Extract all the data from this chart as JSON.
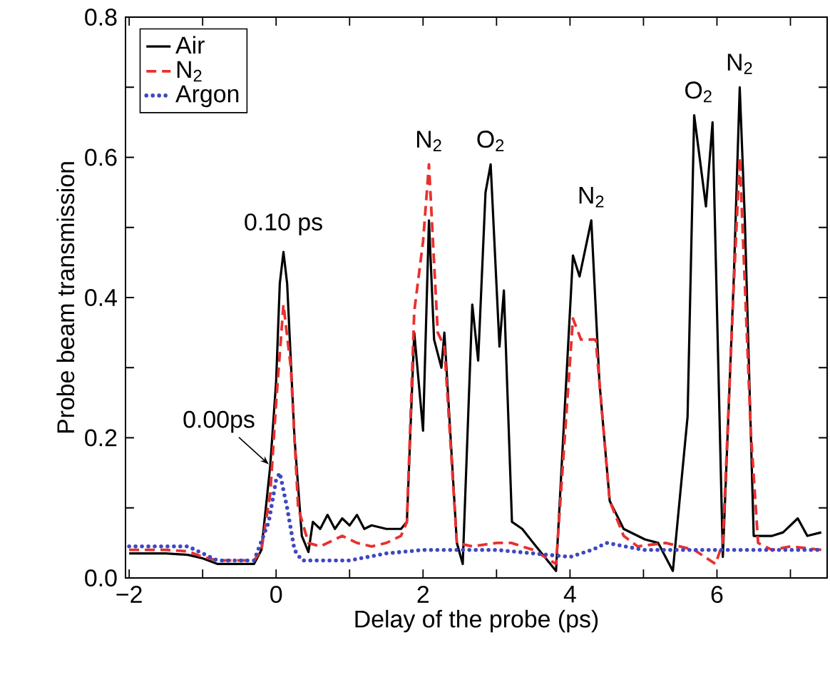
{
  "chart_data": {
    "type": "line",
    "xlabel": "Delay of the probe (ps)",
    "ylabel": "Probe beam transmission",
    "xlim": [
      -2.05,
      7.5
    ],
    "ylim": [
      0,
      0.8
    ],
    "xticks": [
      {
        "value": -2,
        "label": "−2"
      },
      {
        "value": -1,
        "label": null
      },
      {
        "value": 0,
        "label": "0"
      },
      {
        "value": 1,
        "label": null
      },
      {
        "value": 2,
        "label": "2"
      },
      {
        "value": 3,
        "label": null
      },
      {
        "value": 4,
        "label": "4"
      },
      {
        "value": 5,
        "label": null
      },
      {
        "value": 6,
        "label": "6"
      },
      {
        "value": 7,
        "label": null
      }
    ],
    "yticks": [
      {
        "value": 0,
        "label": "0.0"
      },
      {
        "value": 0.1,
        "label": null
      },
      {
        "value": 0.2,
        "label": "0.2"
      },
      {
        "value": 0.3,
        "label": null
      },
      {
        "value": 0.4,
        "label": "0.4"
      },
      {
        "value": 0.5,
        "label": null
      },
      {
        "value": 0.6,
        "label": "0.6"
      },
      {
        "value": 0.7,
        "label": null
      },
      {
        "value": 0.8,
        "label": "0.8"
      }
    ],
    "legend": "top left",
    "grid": false,
    "marker": "none",
    "series": [
      {
        "name": "Air",
        "color": "#000000",
        "line_style": "solid",
        "x": [
          -2,
          -1.5,
          -1.2,
          -1,
          -0.8,
          -0.5,
          -0.3,
          -0.2,
          -0.08,
          0,
          0.05,
          0.1,
          0.15,
          0.25,
          0.35,
          0.44,
          0.5,
          0.6,
          0.7,
          0.8,
          0.9,
          1.0,
          1.1,
          1.2,
          1.3,
          1.5,
          1.7,
          1.78,
          1.88,
          2.0,
          2.08,
          2.15,
          2.25,
          2.29,
          2.46,
          2.54,
          2.67,
          2.75,
          2.85,
          2.92,
          3.04,
          3.1,
          3.21,
          3.35,
          3.5,
          3.81,
          4.04,
          4.13,
          4.29,
          4.4,
          4.54,
          4.73,
          5.02,
          5.2,
          5.4,
          5.6,
          5.69,
          5.85,
          5.94,
          6.08,
          6.23,
          6.31,
          6.38,
          6.5,
          6.75,
          6.9,
          7.1,
          7.23,
          7.42
        ],
        "values": [
          0.035,
          0.035,
          0.033,
          0.028,
          0.02,
          0.02,
          0.02,
          0.04,
          0.16,
          0.28,
          0.42,
          0.465,
          0.42,
          0.2,
          0.06,
          0.037,
          0.08,
          0.07,
          0.09,
          0.07,
          0.085,
          0.075,
          0.09,
          0.07,
          0.075,
          0.07,
          0.07,
          0.08,
          0.35,
          0.21,
          0.51,
          0.34,
          0.3,
          0.35,
          0.05,
          0.02,
          0.39,
          0.31,
          0.55,
          0.59,
          0.33,
          0.41,
          0.08,
          0.07,
          0.05,
          0.01,
          0.46,
          0.43,
          0.51,
          0.28,
          0.11,
          0.07,
          0.055,
          0.05,
          0.01,
          0.23,
          0.66,
          0.53,
          0.65,
          0.03,
          0.43,
          0.7,
          0.51,
          0.06,
          0.06,
          0.065,
          0.085,
          0.06,
          0.065
        ]
      },
      {
        "name": "N$_{2}$",
        "color": "#e8312f",
        "line_style": "dashed",
        "x": [
          -2,
          -1.5,
          -1.2,
          -1,
          -0.8,
          -0.5,
          -0.3,
          -0.2,
          -0.08,
          0,
          0.1,
          0.2,
          0.3,
          0.44,
          0.6,
          0.9,
          1.1,
          1.3,
          1.5,
          1.7,
          1.78,
          1.88,
          2.0,
          2.08,
          2.2,
          2.29,
          2.46,
          2.67,
          3.0,
          3.2,
          3.5,
          3.81,
          4.04,
          4.15,
          4.35,
          4.54,
          4.73,
          4.92,
          5.3,
          5.69,
          5.98,
          6.08,
          6.23,
          6.31,
          6.46,
          6.56,
          6.75,
          7.0,
          7.42
        ],
        "values": [
          0.04,
          0.04,
          0.038,
          0.03,
          0.025,
          0.025,
          0.025,
          0.04,
          0.12,
          0.25,
          0.39,
          0.3,
          0.1,
          0.05,
          0.045,
          0.06,
          0.05,
          0.045,
          0.05,
          0.06,
          0.08,
          0.38,
          0.48,
          0.59,
          0.35,
          0.33,
          0.05,
          0.045,
          0.05,
          0.05,
          0.04,
          0.02,
          0.37,
          0.34,
          0.34,
          0.11,
          0.06,
          0.045,
          0.05,
          0.04,
          0.02,
          0.05,
          0.42,
          0.6,
          0.21,
          0.05,
          0.04,
          0.045,
          0.04
        ]
      },
      {
        "name": "Argon",
        "color": "#3f48c0",
        "line_style": "dotted",
        "x": [
          -2,
          -1.5,
          -1.2,
          -1,
          -0.8,
          -0.5,
          -0.3,
          -0.1,
          0,
          0.05,
          0.15,
          0.25,
          0.35,
          0.7,
          1.0,
          1.5,
          2.0,
          2.5,
          3.0,
          3.5,
          4.0,
          4.3,
          4.5,
          5.0,
          5.5,
          6.0,
          6.5,
          7.0,
          7.4
        ],
        "values": [
          0.045,
          0.045,
          0.045,
          0.035,
          0.025,
          0.025,
          0.025,
          0.08,
          0.14,
          0.15,
          0.1,
          0.04,
          0.025,
          0.025,
          0.025,
          0.035,
          0.04,
          0.04,
          0.04,
          0.035,
          0.03,
          0.04,
          0.05,
          0.04,
          0.04,
          0.04,
          0.04,
          0.04,
          0.04
        ]
      }
    ],
    "annotations": [
      {
        "text": "0.00ps",
        "x": -0.08,
        "y": 0.16
      },
      {
        "text": "0.10 ps",
        "x": 0.1,
        "y": 0.47
      },
      {
        "text": "N$_{2}$",
        "x": 2.08,
        "y": 0.59
      },
      {
        "text": "O$_{2}$",
        "x": 2.92,
        "y": 0.59
      },
      {
        "text": "N$_{2}$",
        "x": 4.29,
        "y": 0.51
      },
      {
        "text": "O$_{2}$",
        "x": 5.75,
        "y": 0.66
      },
      {
        "text": "N$_{2}$",
        "x": 6.31,
        "y": 0.7
      }
    ]
  }
}
